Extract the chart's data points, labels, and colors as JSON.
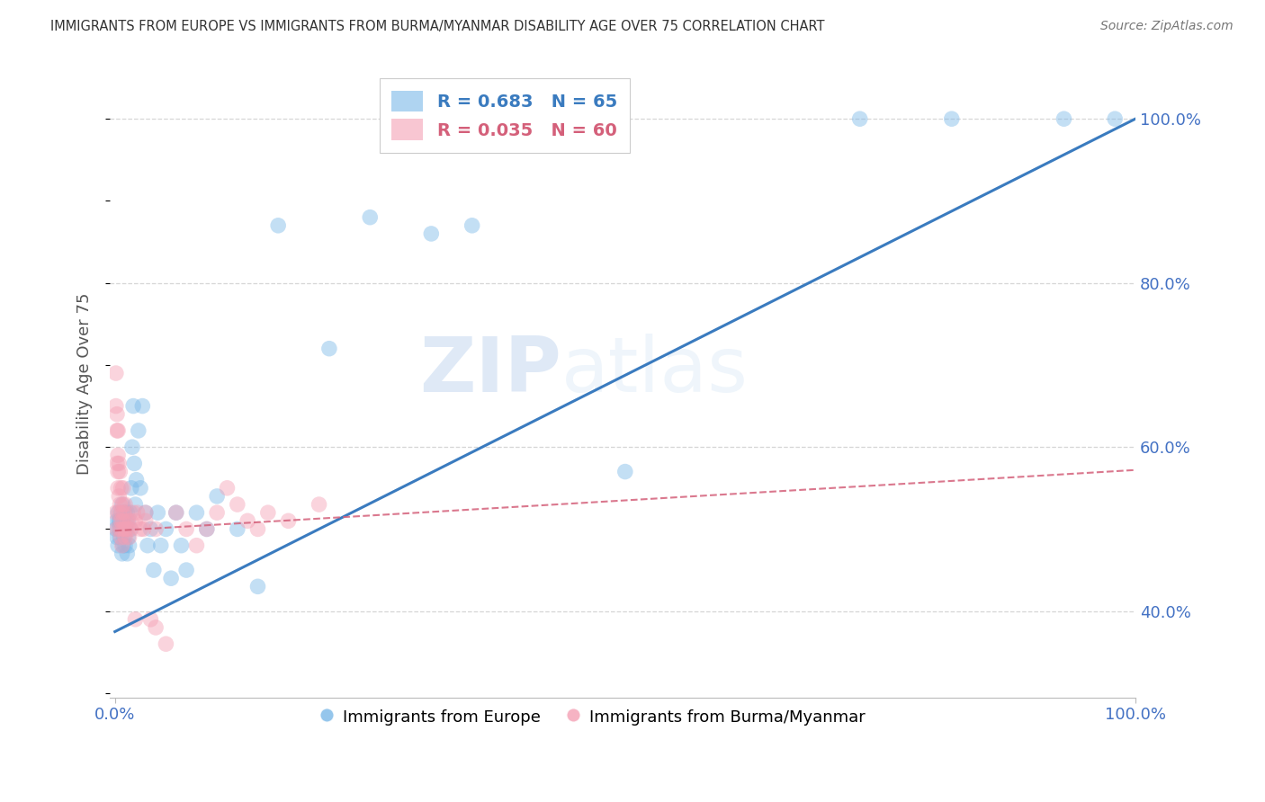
{
  "title": "IMMIGRANTS FROM EUROPE VS IMMIGRANTS FROM BURMA/MYANMAR DISABILITY AGE OVER 75 CORRELATION CHART",
  "source": "Source: ZipAtlas.com",
  "ylabel": "Disability Age Over 75",
  "legend_blue_r": "R = 0.683",
  "legend_blue_n": "N = 65",
  "legend_pink_r": "R = 0.035",
  "legend_pink_n": "N = 60",
  "legend_label_blue": "Immigrants from Europe",
  "legend_label_pink": "Immigrants from Burma/Myanmar",
  "blue_color": "#7bb8e8",
  "pink_color": "#f4a0b5",
  "blue_line_color": "#3a7bbf",
  "pink_line_color": "#d4607a",
  "watermark_zip": "ZIP",
  "watermark_atlas": "atlas",
  "blue_scatter_x": [
    0.001,
    0.002,
    0.002,
    0.003,
    0.003,
    0.004,
    0.004,
    0.005,
    0.005,
    0.006,
    0.006,
    0.007,
    0.007,
    0.007,
    0.008,
    0.008,
    0.009,
    0.009,
    0.01,
    0.01,
    0.01,
    0.011,
    0.011,
    0.012,
    0.012,
    0.013,
    0.013,
    0.014,
    0.015,
    0.015,
    0.016,
    0.017,
    0.018,
    0.019,
    0.02,
    0.021,
    0.023,
    0.025,
    0.027,
    0.03,
    0.032,
    0.035,
    0.038,
    0.042,
    0.045,
    0.05,
    0.055,
    0.06,
    0.065,
    0.07,
    0.08,
    0.09,
    0.1,
    0.12,
    0.14,
    0.16,
    0.21,
    0.25,
    0.31,
    0.35,
    0.5,
    0.73,
    0.82,
    0.93,
    0.98
  ],
  "blue_scatter_y": [
    0.5,
    0.49,
    0.51,
    0.48,
    0.52,
    0.5,
    0.51,
    0.49,
    0.51,
    0.5,
    0.52,
    0.47,
    0.5,
    0.53,
    0.48,
    0.51,
    0.49,
    0.52,
    0.5,
    0.48,
    0.52,
    0.5,
    0.51,
    0.47,
    0.52,
    0.49,
    0.51,
    0.48,
    0.5,
    0.52,
    0.55,
    0.6,
    0.65,
    0.58,
    0.53,
    0.56,
    0.62,
    0.55,
    0.65,
    0.52,
    0.48,
    0.5,
    0.45,
    0.52,
    0.48,
    0.5,
    0.44,
    0.52,
    0.48,
    0.45,
    0.52,
    0.5,
    0.54,
    0.5,
    0.43,
    0.87,
    0.72,
    0.88,
    0.86,
    0.87,
    0.57,
    1.0,
    1.0,
    1.0,
    1.0
  ],
  "pink_scatter_x": [
    0.001,
    0.001,
    0.001,
    0.002,
    0.002,
    0.002,
    0.002,
    0.003,
    0.003,
    0.003,
    0.003,
    0.004,
    0.004,
    0.004,
    0.005,
    0.005,
    0.005,
    0.006,
    0.006,
    0.006,
    0.007,
    0.007,
    0.007,
    0.008,
    0.008,
    0.008,
    0.009,
    0.009,
    0.01,
    0.01,
    0.011,
    0.012,
    0.013,
    0.014,
    0.015,
    0.016,
    0.018,
    0.02,
    0.022,
    0.025,
    0.028,
    0.03,
    0.035,
    0.04,
    0.05,
    0.06,
    0.07,
    0.08,
    0.09,
    0.1,
    0.11,
    0.12,
    0.13,
    0.14,
    0.15,
    0.17,
    0.2,
    0.03,
    0.04,
    0.02
  ],
  "pink_scatter_y": [
    0.52,
    0.69,
    0.65,
    0.5,
    0.62,
    0.58,
    0.64,
    0.57,
    0.62,
    0.59,
    0.55,
    0.54,
    0.58,
    0.52,
    0.53,
    0.57,
    0.5,
    0.51,
    0.55,
    0.49,
    0.52,
    0.5,
    0.48,
    0.51,
    0.55,
    0.53,
    0.5,
    0.52,
    0.49,
    0.53,
    0.5,
    0.51,
    0.5,
    0.49,
    0.51,
    0.5,
    0.52,
    0.51,
    0.52,
    0.5,
    0.5,
    0.52,
    0.39,
    0.38,
    0.36,
    0.52,
    0.5,
    0.48,
    0.5,
    0.52,
    0.55,
    0.53,
    0.51,
    0.5,
    0.52,
    0.51,
    0.53,
    0.51,
    0.5,
    0.39
  ],
  "blue_line_x": [
    0.0,
    1.0
  ],
  "blue_line_y": [
    0.375,
    1.0
  ],
  "pink_line_x": [
    0.0,
    1.0
  ],
  "pink_line_y": [
    0.498,
    0.572
  ],
  "xlim": [
    -0.005,
    1.0
  ],
  "ylim": [
    0.295,
    1.06
  ],
  "yticks": [
    0.4,
    0.6,
    0.8,
    1.0
  ],
  "xticks": [
    0.0,
    1.0
  ],
  "grid_color": "#cccccc",
  "background_color": "#ffffff",
  "title_color": "#333333",
  "tick_label_color": "#4472c4"
}
